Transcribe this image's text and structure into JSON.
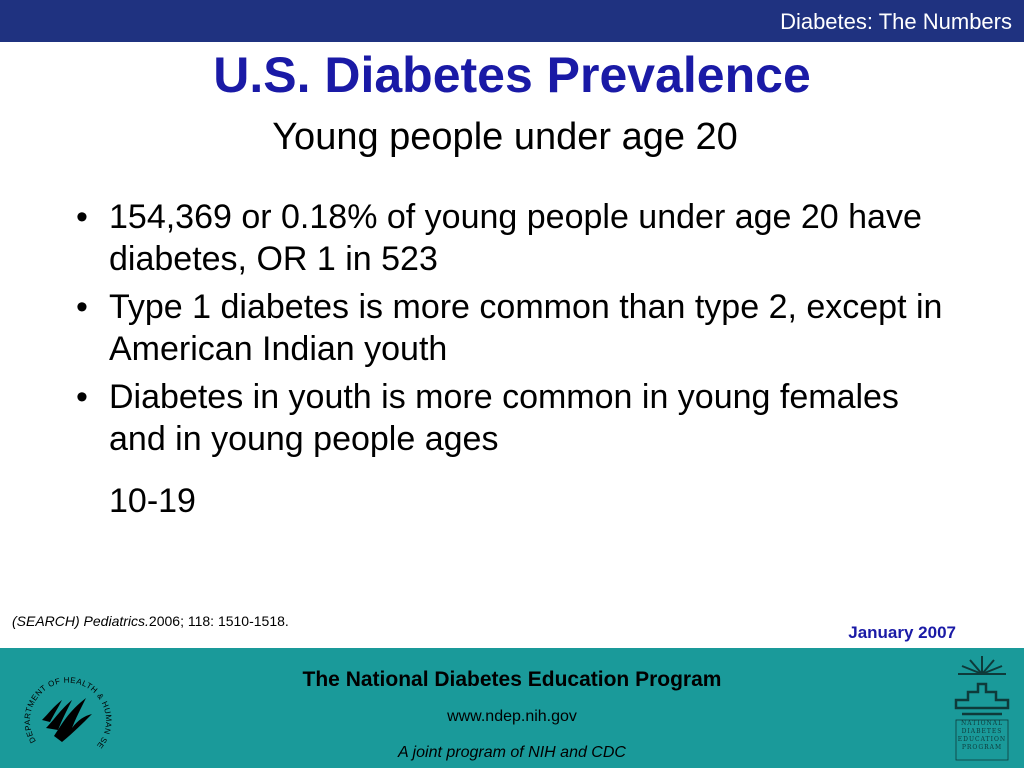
{
  "header": {
    "section_title": "Diabetes: The Numbers"
  },
  "slide": {
    "title": "U.S. Diabetes Prevalence",
    "subtitle": "Young people under age 20",
    "bullets": [
      "154,369 or 0.18% of young people under age 20 have diabetes, OR 1 in 523",
      "Type 1 diabetes is more common than type 2, except in American Indian youth",
      "Diabetes in youth is more common in young females and in young people ages"
    ],
    "bullet_continuation": "10-19",
    "citation_italic": "(SEARCH) Pediatrics.",
    "citation_rest": "2006; 118: 1510-1518.",
    "date": "January 2007"
  },
  "footer": {
    "program_name": "The National Diabetes Education Program",
    "url": "www.ndep.nih.gov",
    "tagline": "A joint program of NIH and CDC",
    "left_logo": "hhs-eagle-seal-icon",
    "right_logo": "ndep-logo-icon",
    "ndep_logo_lines": [
      "NATIONAL",
      "DIABETES",
      "EDUCATION",
      "PROGRAM"
    ],
    "hhs_seal_text": "DEPARTMENT OF HEALTH & HUMAN SERVICES · USA"
  },
  "colors": {
    "top_bar": "#1f3280",
    "title": "#1a1aa6",
    "footer_bg": "#1a9a9a"
  }
}
